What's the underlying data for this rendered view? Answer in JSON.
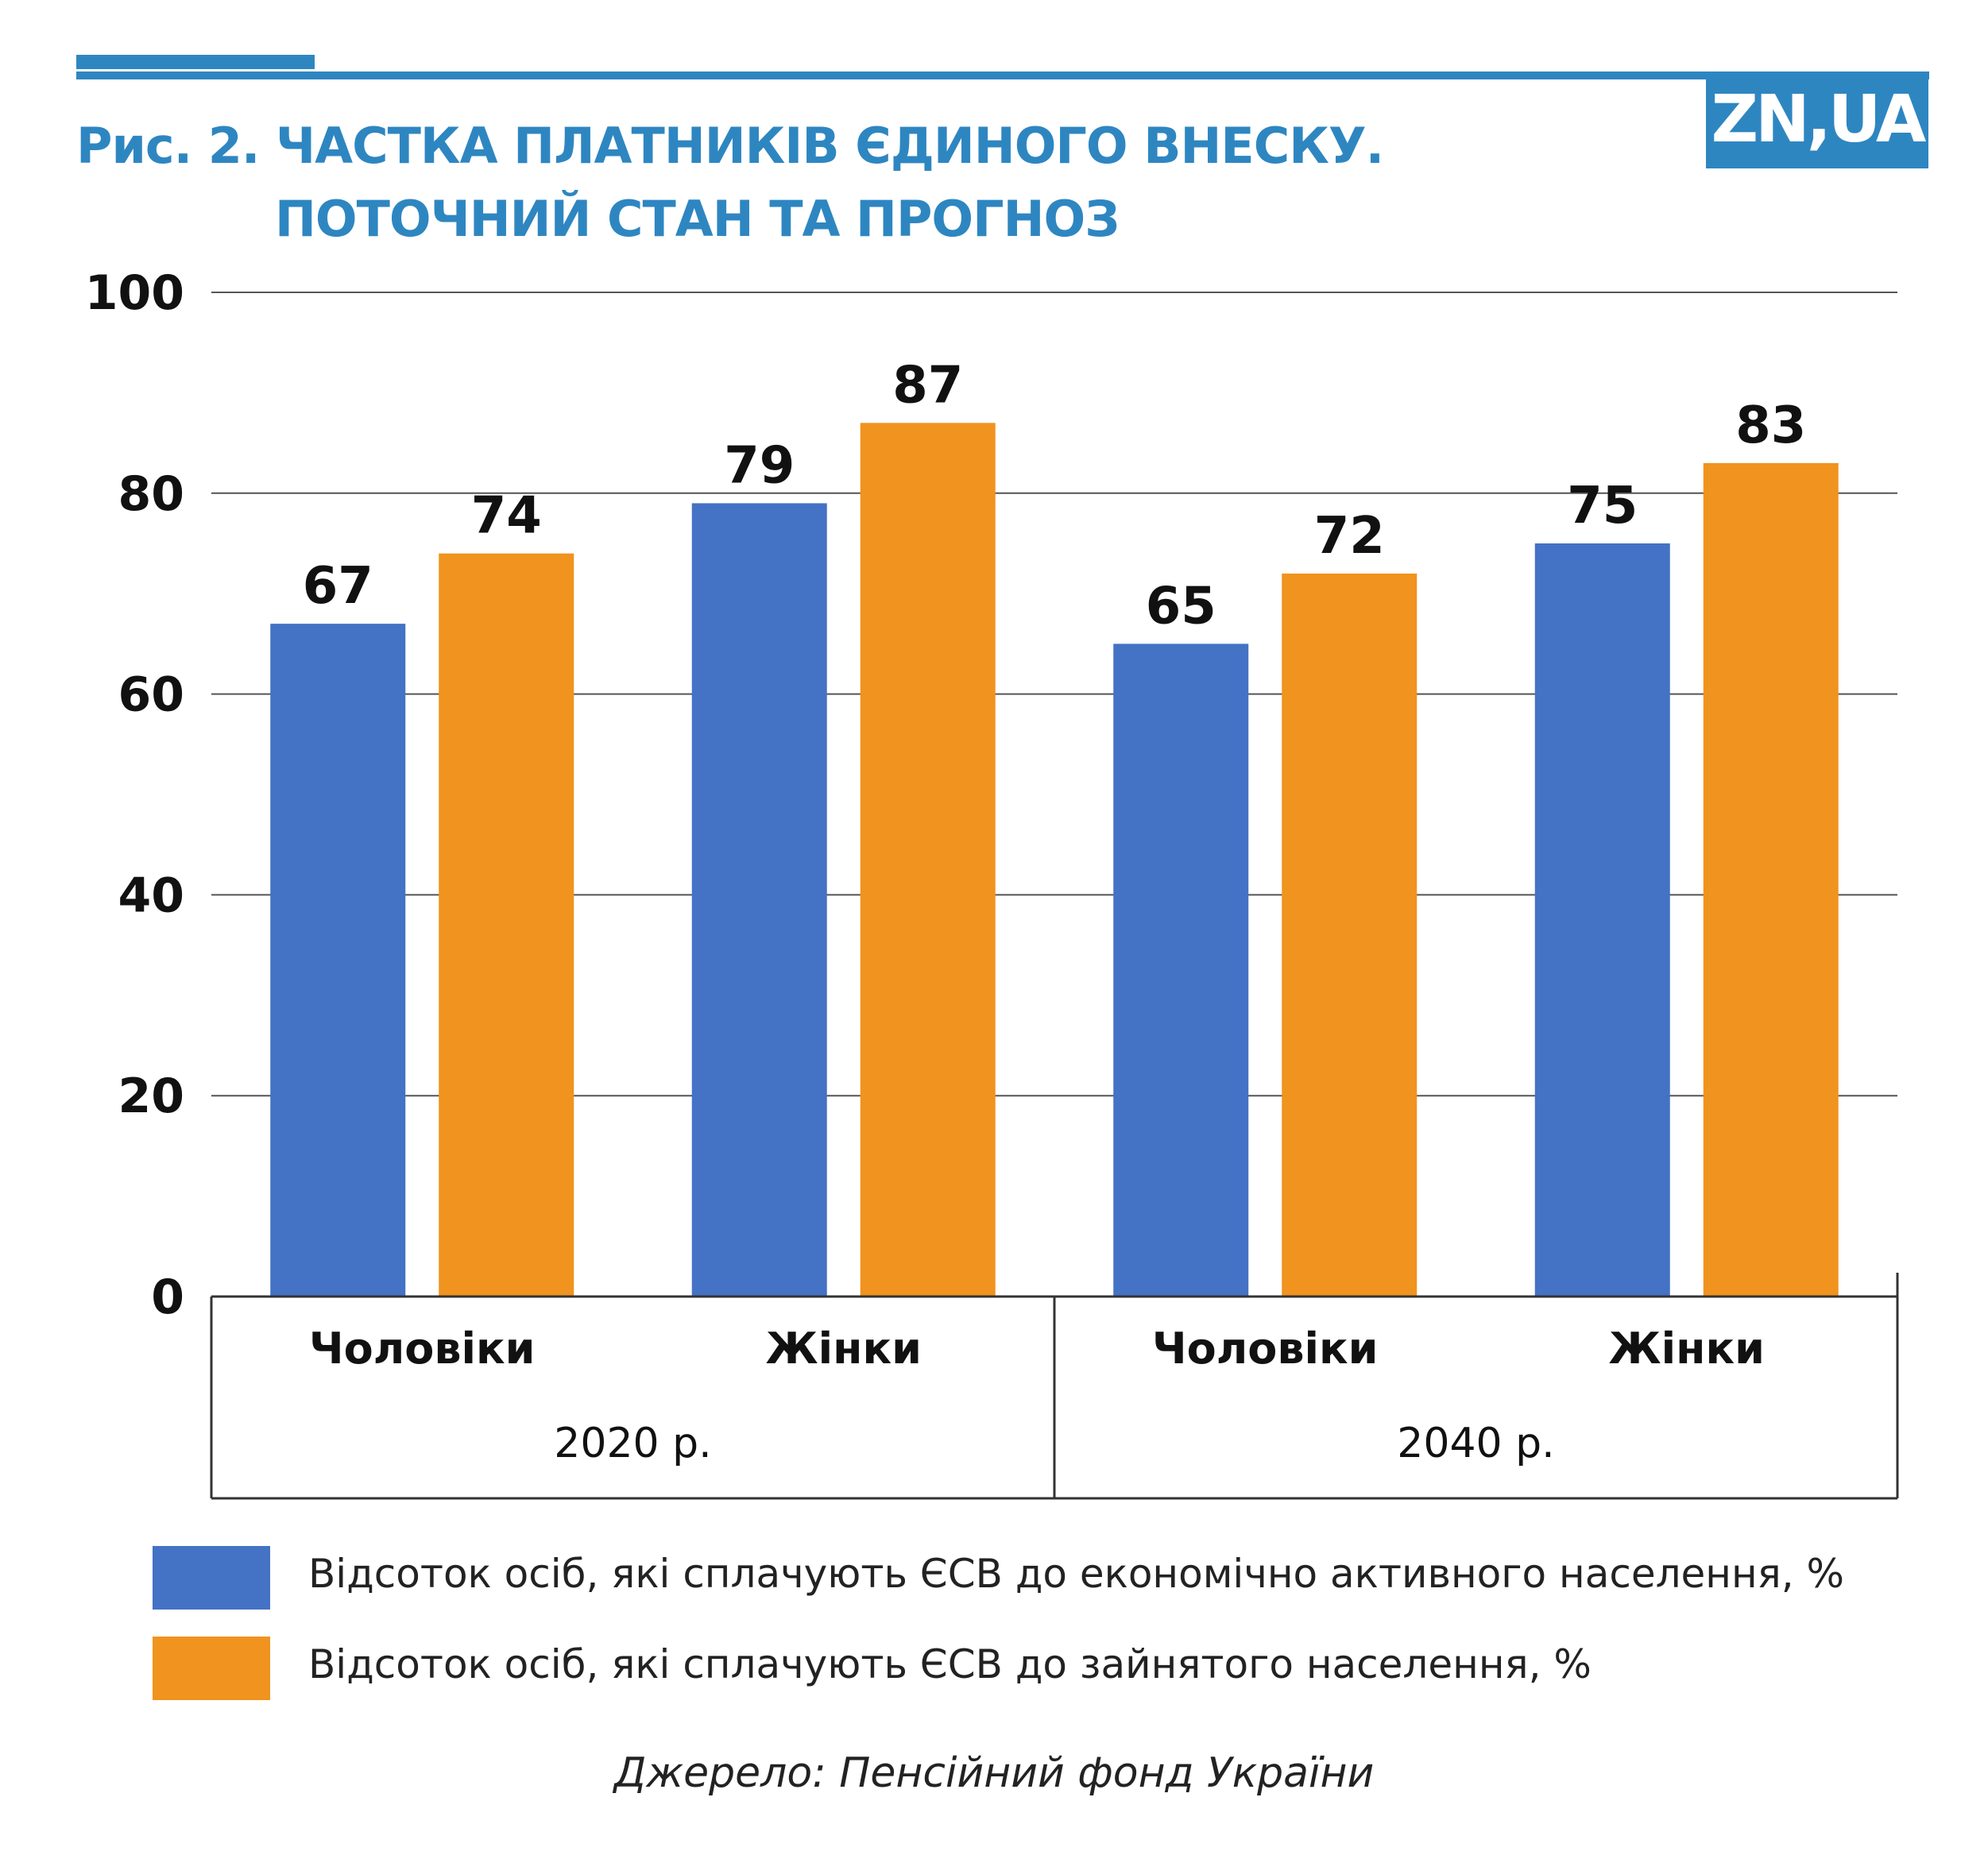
{
  "header": {
    "title_line1": "Рис. 2. ЧАСТКА ПЛАТНИКІВ ЄДИНОГО ВНЕСКУ.",
    "title_line2": "ПОТОЧНИЙ СТАН ТА ПРОГНОЗ",
    "logo_text": "ZN,UA"
  },
  "colors": {
    "accent": "#2e86c1",
    "series_blue": "#4472c4",
    "series_orange": "#f0931f"
  },
  "chart_data": {
    "type": "bar",
    "ylim": [
      0,
      100
    ],
    "yticks": [
      0,
      20,
      40,
      60,
      80,
      100
    ],
    "grid": true,
    "groups": [
      {
        "label": "2020 р.",
        "categories": [
          "Чоловіки",
          "Жінки"
        ]
      },
      {
        "label": "2040 р.",
        "categories": [
          "Чоловіки",
          "Жінки"
        ]
      }
    ],
    "categories": [
      "Чоловіки",
      "Жінки",
      "Чоловіки",
      "Жінки"
    ],
    "series": [
      {
        "name": "Відсоток осіб, які сплачують ЄСВ до економічно активного населення, %",
        "color": "#4472c4",
        "values": [
          67,
          79,
          65,
          75
        ]
      },
      {
        "name": "Відсоток осіб, які сплачують ЄСВ до зайнятого населення, %",
        "color": "#f0931f",
        "values": [
          74,
          87,
          72,
          83
        ]
      }
    ],
    "legend_position": "bottom"
  },
  "source": "Джерело: Пенсійний фонд України"
}
